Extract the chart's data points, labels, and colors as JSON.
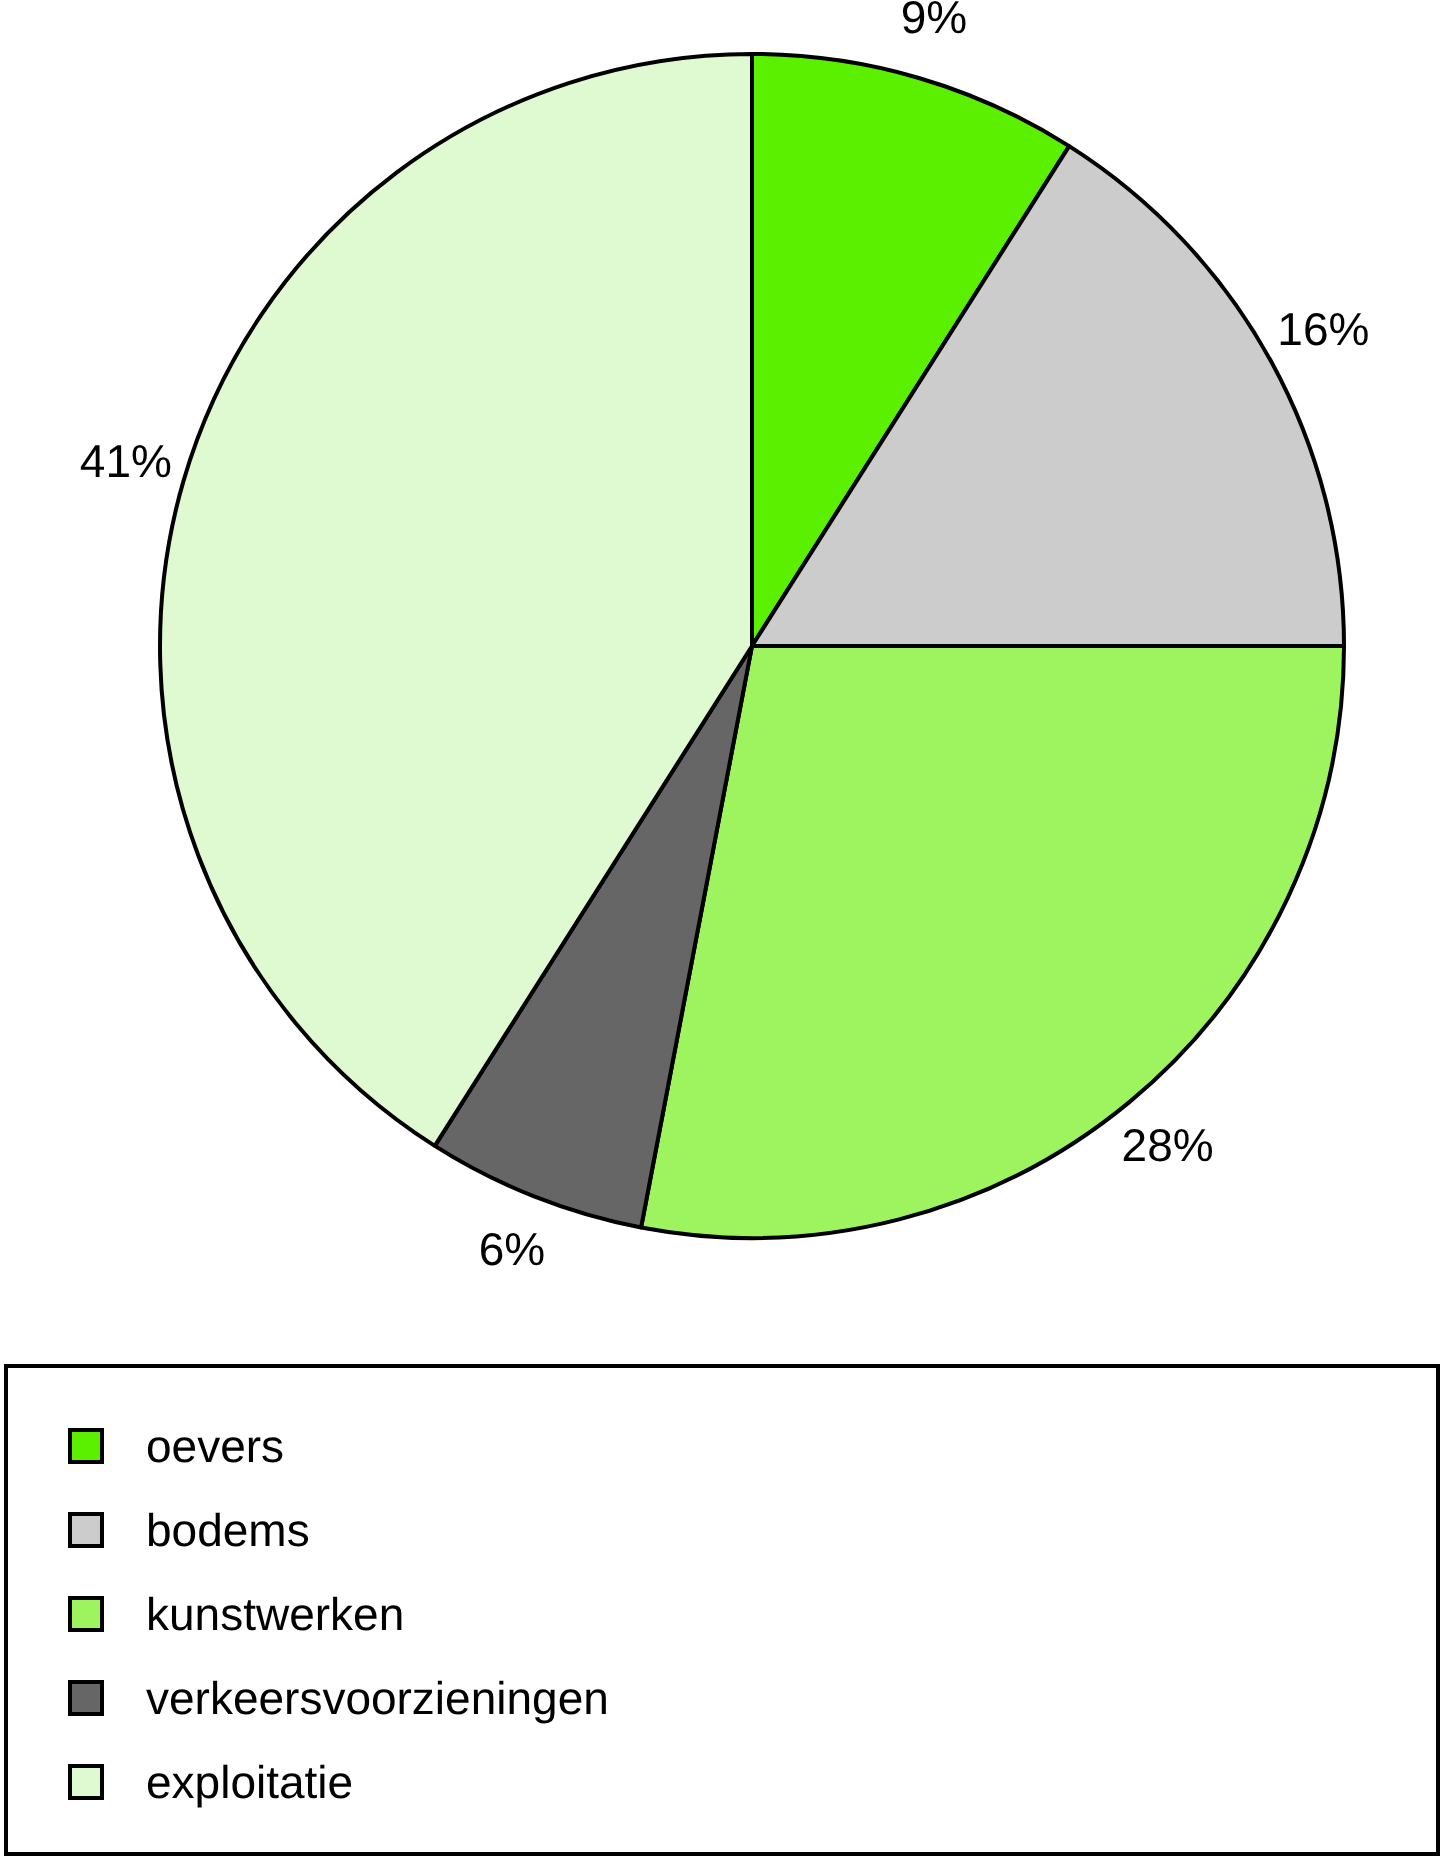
{
  "chart_data": {
    "type": "pie",
    "categories": [
      "oevers",
      "bodems",
      "kunstwerken",
      "verkeersvoorzieningen",
      "exploitatie"
    ],
    "values": [
      9,
      16,
      28,
      6,
      41
    ],
    "value_labels": [
      "9%",
      "16%",
      "28%",
      "6%",
      "41%"
    ],
    "colors": [
      "#5af000",
      "#cccccc",
      "#9ef45e",
      "#666666",
      "#dff9d0"
    ],
    "legend": "bottom"
  }
}
